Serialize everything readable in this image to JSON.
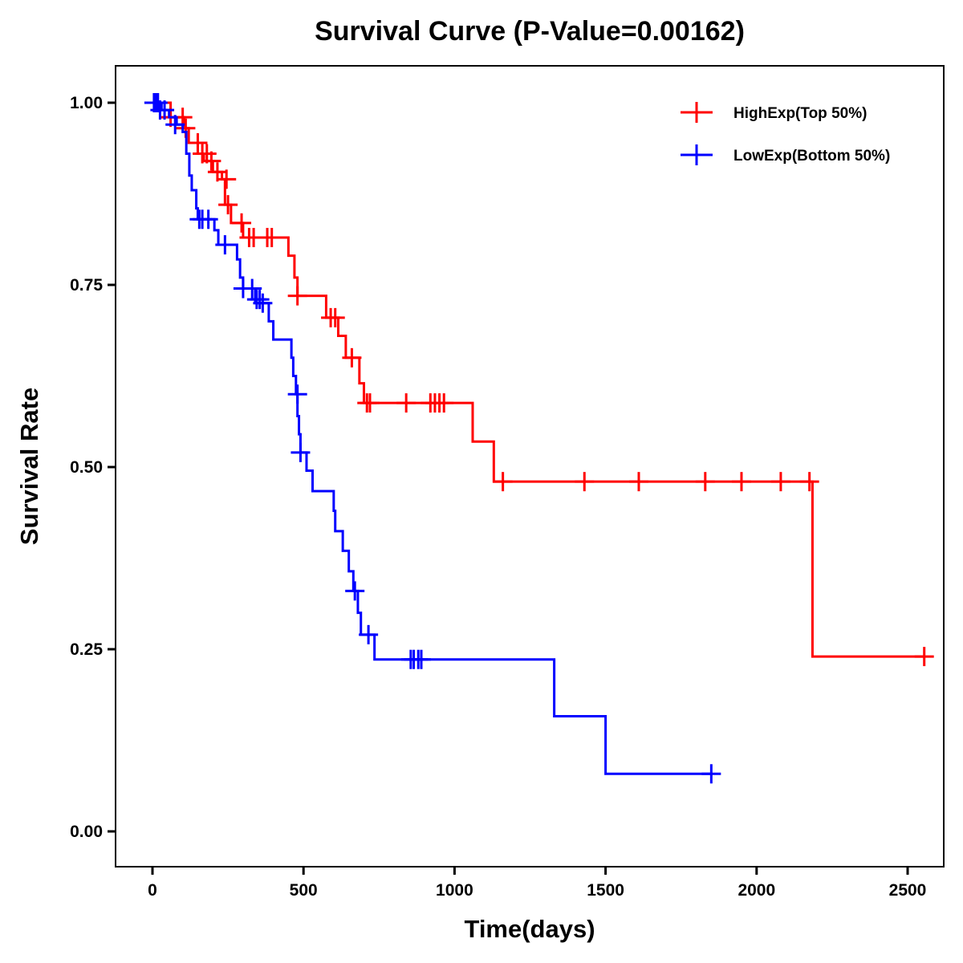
{
  "chart_data": {
    "type": "line",
    "subtype": "kaplan-meier step",
    "title": "Survival Curve (P-Value=0.00162)",
    "xlabel": "Time(days)",
    "ylabel": "Survival Rate",
    "xlim": [
      -120,
      2620
    ],
    "ylim": [
      -0.05,
      1.05
    ],
    "x_ticks": [
      0,
      500,
      1000,
      1500,
      2000,
      2500
    ],
    "x_tick_labels": [
      "0",
      "500",
      "1000",
      "1500",
      "2000",
      "2500"
    ],
    "y_ticks": [
      0,
      0.25,
      0.5,
      0.75,
      1.0
    ],
    "y_tick_labels": [
      "0.00",
      "0.25",
      "0.50",
      "0.75",
      "1.00"
    ],
    "grid": false,
    "legend_position": "top-right",
    "series": [
      {
        "name": "HighExp(Top 50%)",
        "color": "#ff0000",
        "steps": [
          [
            0,
            1.0
          ],
          [
            60,
            0.98
          ],
          [
            105,
            0.965
          ],
          [
            120,
            0.945
          ],
          [
            150,
            0.93
          ],
          [
            170,
            0.92
          ],
          [
            200,
            0.905
          ],
          [
            230,
            0.895
          ],
          [
            240,
            0.86
          ],
          [
            260,
            0.835
          ],
          [
            300,
            0.815
          ],
          [
            450,
            0.79
          ],
          [
            470,
            0.76
          ],
          [
            480,
            0.735
          ],
          [
            575,
            0.705
          ],
          [
            615,
            0.68
          ],
          [
            640,
            0.65
          ],
          [
            685,
            0.615
          ],
          [
            700,
            0.588
          ],
          [
            1060,
            0.535
          ],
          [
            1130,
            0.48
          ],
          [
            2185,
            0.24
          ]
        ],
        "end_time": 2555,
        "censored": [
          [
            10,
            1.0
          ],
          [
            60,
            0.98
          ],
          [
            100,
            0.98
          ],
          [
            110,
            0.965
          ],
          [
            150,
            0.945
          ],
          [
            165,
            0.93
          ],
          [
            180,
            0.93
          ],
          [
            195,
            0.92
          ],
          [
            215,
            0.905
          ],
          [
            245,
            0.895
          ],
          [
            250,
            0.86
          ],
          [
            295,
            0.835
          ],
          [
            320,
            0.815
          ],
          [
            335,
            0.815
          ],
          [
            380,
            0.815
          ],
          [
            395,
            0.815
          ],
          [
            480,
            0.735
          ],
          [
            590,
            0.705
          ],
          [
            605,
            0.705
          ],
          [
            660,
            0.65
          ],
          [
            710,
            0.588
          ],
          [
            720,
            0.588
          ],
          [
            840,
            0.588
          ],
          [
            920,
            0.588
          ],
          [
            935,
            0.588
          ],
          [
            950,
            0.588
          ],
          [
            965,
            0.588
          ],
          [
            1160,
            0.48
          ],
          [
            1430,
            0.48
          ],
          [
            1610,
            0.48
          ],
          [
            1830,
            0.48
          ],
          [
            1950,
            0.48
          ],
          [
            2080,
            0.48
          ],
          [
            2175,
            0.48
          ],
          [
            2555,
            0.24
          ]
        ]
      },
      {
        "name": "LowExp(Bottom 50%)",
        "color": "#0000ff",
        "steps": [
          [
            0,
            1.0
          ],
          [
            30,
            0.99
          ],
          [
            55,
            0.98
          ],
          [
            80,
            0.97
          ],
          [
            100,
            0.96
          ],
          [
            112,
            0.93
          ],
          [
            122,
            0.9
          ],
          [
            130,
            0.88
          ],
          [
            145,
            0.855
          ],
          [
            150,
            0.84
          ],
          [
            205,
            0.825
          ],
          [
            218,
            0.805
          ],
          [
            280,
            0.785
          ],
          [
            290,
            0.76
          ],
          [
            300,
            0.745
          ],
          [
            340,
            0.725
          ],
          [
            385,
            0.7
          ],
          [
            400,
            0.675
          ],
          [
            460,
            0.65
          ],
          [
            466,
            0.625
          ],
          [
            475,
            0.6
          ],
          [
            480,
            0.57
          ],
          [
            485,
            0.545
          ],
          [
            490,
            0.52
          ],
          [
            510,
            0.495
          ],
          [
            530,
            0.467
          ],
          [
            600,
            0.44
          ],
          [
            605,
            0.412
          ],
          [
            630,
            0.385
          ],
          [
            650,
            0.357
          ],
          [
            665,
            0.33
          ],
          [
            680,
            0.3
          ],
          [
            690,
            0.27
          ],
          [
            735,
            0.236
          ],
          [
            1330,
            0.158
          ],
          [
            1500,
            0.079
          ]
        ],
        "end_time": 1850,
        "censored": [
          [
            5,
            1.0
          ],
          [
            12,
            1.0
          ],
          [
            18,
            1.0
          ],
          [
            25,
            0.99
          ],
          [
            40,
            0.99
          ],
          [
            75,
            0.97
          ],
          [
            155,
            0.84
          ],
          [
            165,
            0.84
          ],
          [
            185,
            0.84
          ],
          [
            240,
            0.805
          ],
          [
            300,
            0.745
          ],
          [
            330,
            0.745
          ],
          [
            345,
            0.73
          ],
          [
            355,
            0.73
          ],
          [
            365,
            0.725
          ],
          [
            480,
            0.6
          ],
          [
            490,
            0.52
          ],
          [
            670,
            0.33
          ],
          [
            715,
            0.27
          ],
          [
            855,
            0.236
          ],
          [
            865,
            0.236
          ],
          [
            880,
            0.236
          ],
          [
            890,
            0.236
          ],
          [
            1850,
            0.079
          ]
        ]
      }
    ]
  }
}
